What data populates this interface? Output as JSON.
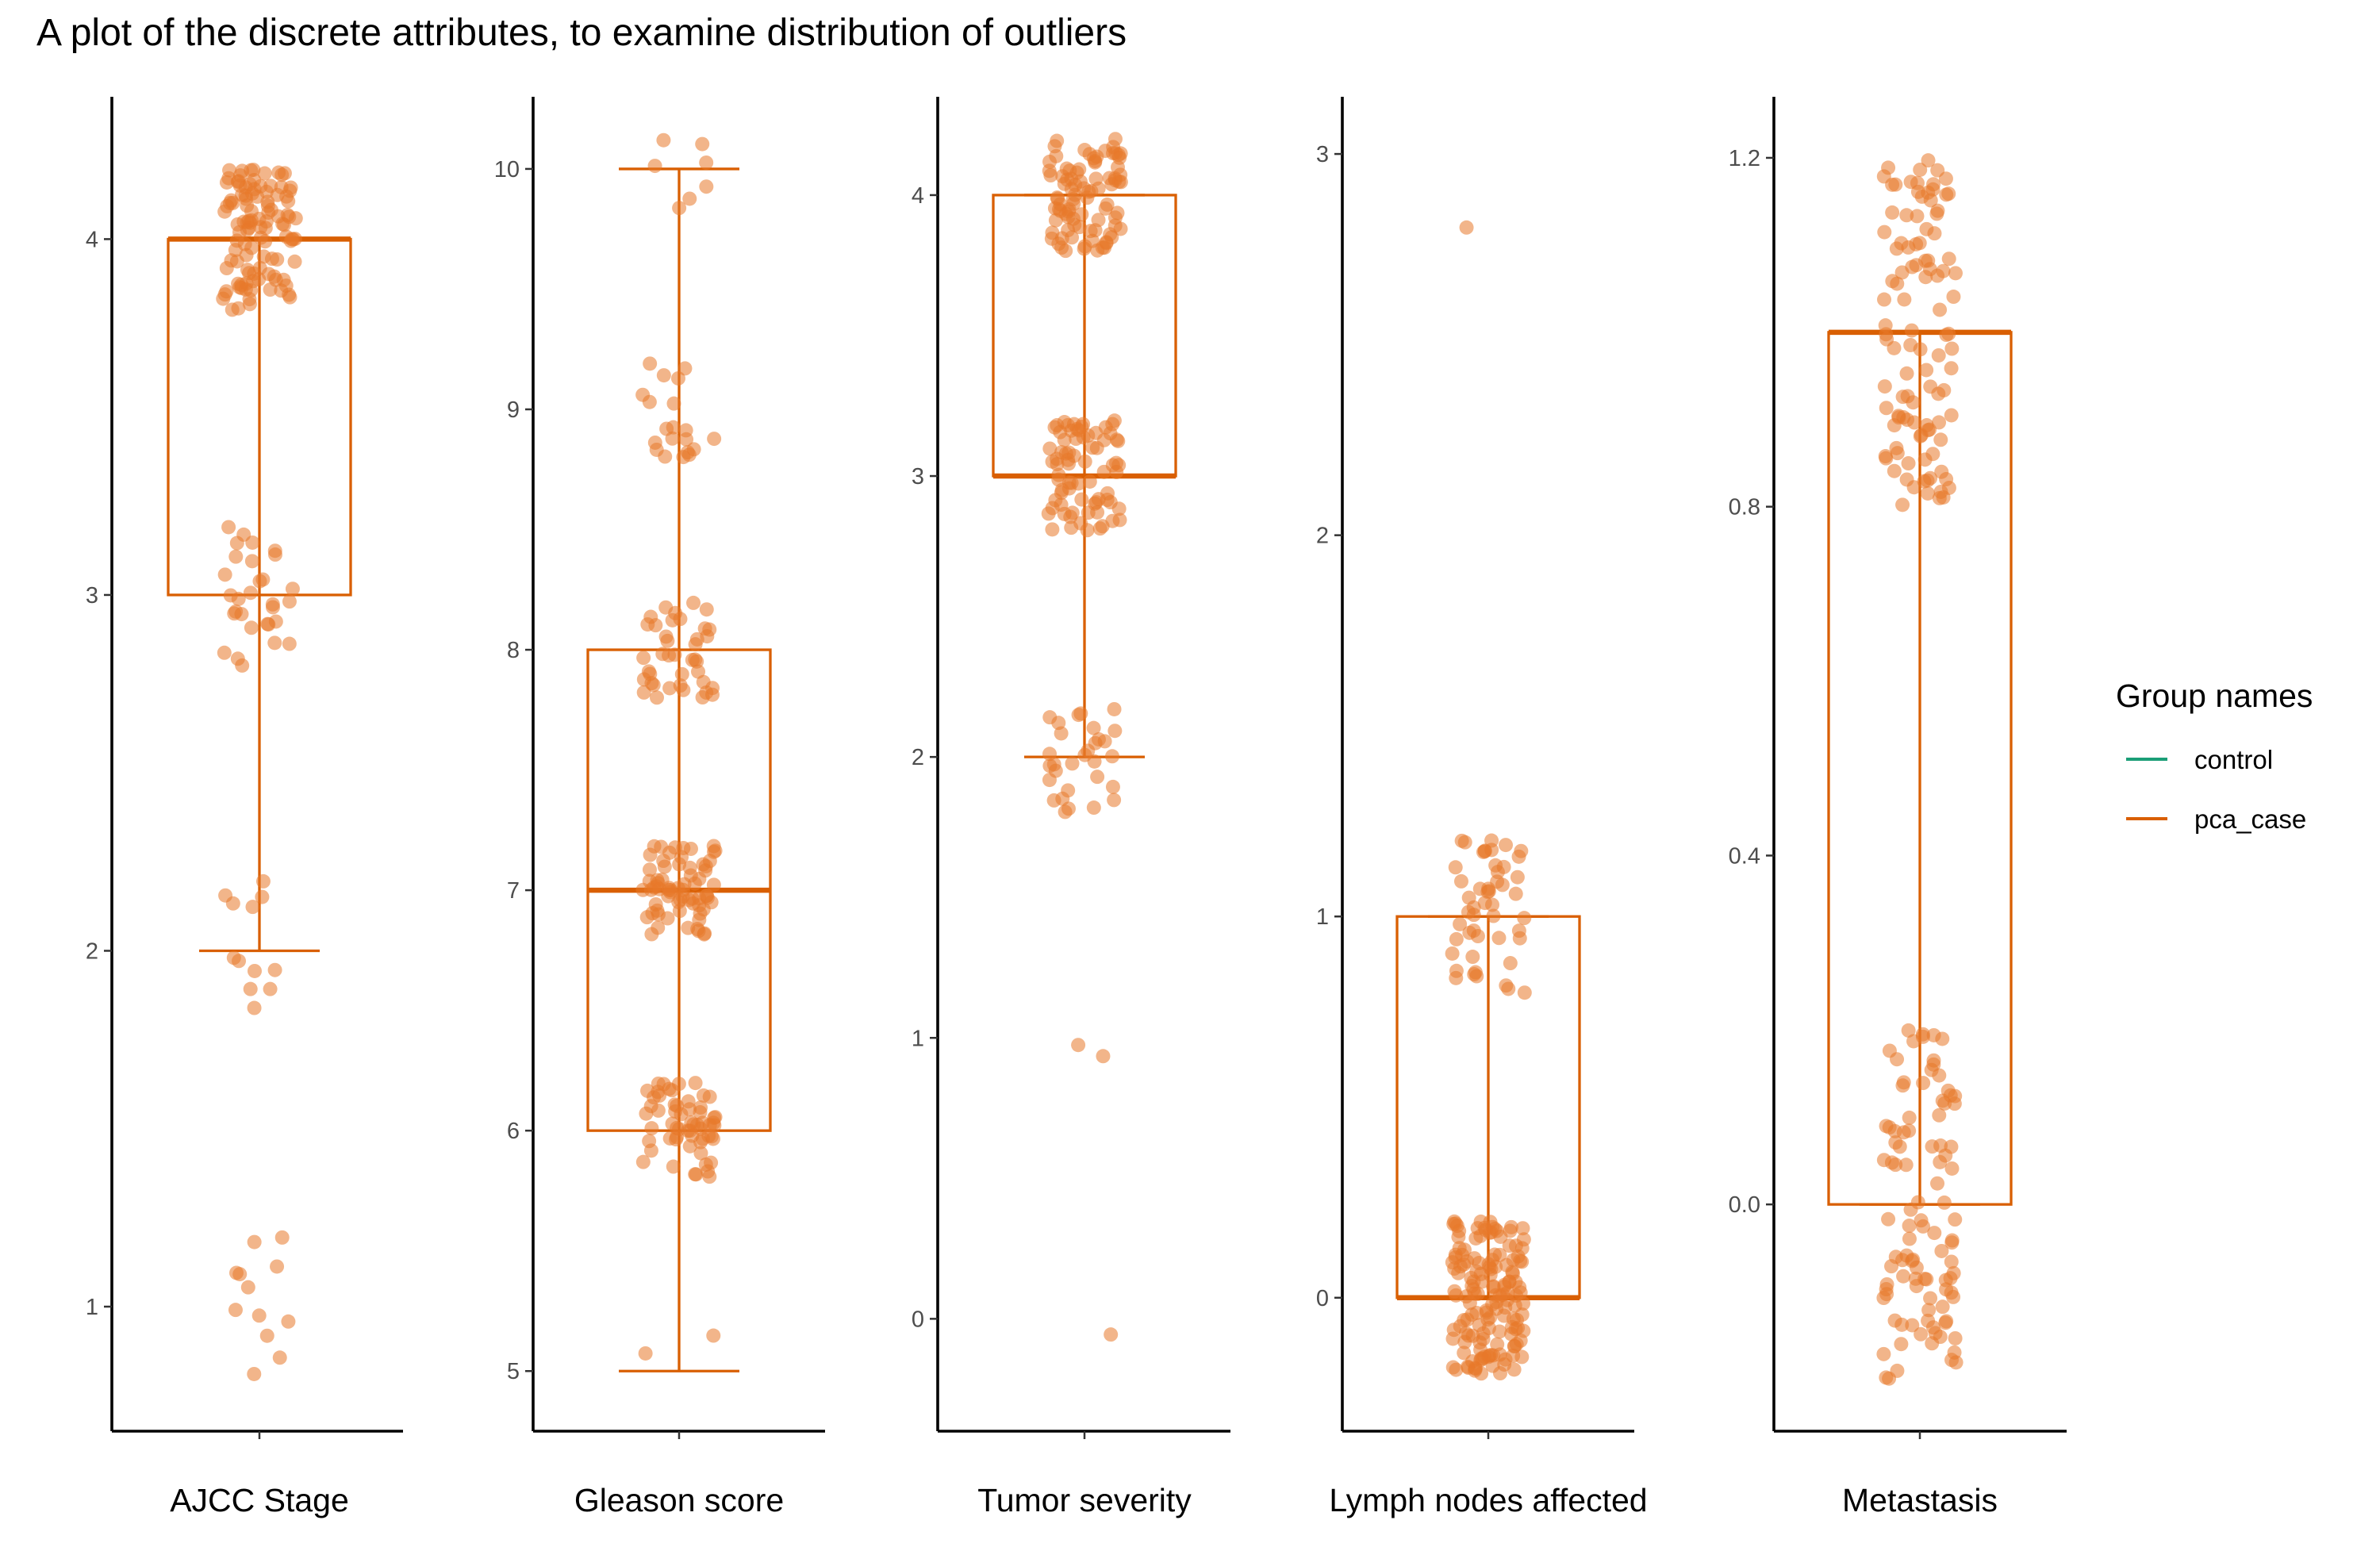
{
  "chart_data": {
    "type": "boxplot",
    "title": "A plot of the discrete attributes, to examine distribution of outliers",
    "colors": {
      "control": "#1b9e77",
      "pca_case": "#d95f02",
      "point_fill": "#e8792a"
    },
    "legend": {
      "title": "Group names",
      "placement": "right",
      "entries": [
        {
          "name": "control",
          "color": "#1b9e77"
        },
        {
          "name": "pca_case",
          "color": "#d95f02"
        }
      ]
    },
    "panels": [
      {
        "xlabel": "AJCC Stage",
        "ylim": [
          0.65,
          4.4
        ],
        "yticks": [
          1,
          2,
          3,
          4
        ],
        "ytick_labels": [
          "1",
          "2",
          "3",
          "4"
        ],
        "box": {
          "q1": 3,
          "median": 4,
          "q3": 4,
          "whisker_low": 2,
          "whisker_high": 4
        },
        "groups": [
          {
            "value": 4,
            "count": 110
          },
          {
            "value": 3,
            "count": 30
          },
          {
            "value": 2,
            "count": 12
          },
          {
            "value": 1,
            "count": 12
          }
        ]
      },
      {
        "xlabel": "Gleason score",
        "ylim": [
          4.75,
          10.3
        ],
        "yticks": [
          5,
          6,
          7,
          8,
          9,
          10
        ],
        "ytick_labels": [
          "5",
          "6",
          "7",
          "8",
          "9",
          "10"
        ],
        "box": {
          "q1": 6,
          "median": 7,
          "q3": 8,
          "whisker_low": 5,
          "whisker_high": 10
        },
        "groups": [
          {
            "value": 10,
            "count": 7
          },
          {
            "value": 9,
            "count": 20
          },
          {
            "value": 8,
            "count": 40
          },
          {
            "value": 7,
            "count": 70
          },
          {
            "value": 6,
            "count": 60
          },
          {
            "value": 5,
            "count": 2
          }
        ]
      },
      {
        "xlabel": "Tumor severity",
        "ylim": [
          -0.4,
          4.35
        ],
        "yticks": [
          0,
          1,
          2,
          3,
          4
        ],
        "ytick_labels": [
          "0",
          "1",
          "2",
          "3",
          "4"
        ],
        "box": {
          "q1": 3,
          "median": 3,
          "q3": 4,
          "whisker_low": 2,
          "whisker_high": 4
        },
        "groups": [
          {
            "value": 4,
            "count": 90
          },
          {
            "value": 3,
            "count": 75
          },
          {
            "value": 2,
            "count": 30
          },
          {
            "value": 1,
            "count": 2
          },
          {
            "value": 0,
            "count": 1
          }
        ]
      },
      {
        "xlabel": "Lymph nodes affected",
        "ylim": [
          -0.35,
          3.15
        ],
        "yticks": [
          0,
          1,
          2,
          3
        ],
        "ytick_labels": [
          "0",
          "1",
          "2",
          "3"
        ],
        "box": {
          "q1": 0,
          "median": 0,
          "q3": 1,
          "whisker_low": 0,
          "whisker_high": 1
        },
        "groups": [
          {
            "value": 3,
            "count": 1
          },
          {
            "value": 1,
            "count": 50
          },
          {
            "value": 0,
            "count": 150
          }
        ]
      },
      {
        "xlabel": "Metastasis",
        "ylim": [
          -0.26,
          1.27
        ],
        "yticks": [
          0.0,
          0.4,
          0.8,
          1.2
        ],
        "ytick_labels": [
          "0.0",
          "0.4",
          "0.8",
          "1.2"
        ],
        "box": {
          "q1": 0,
          "median": 1,
          "q3": 1,
          "whisker_low": 0,
          "whisker_high": 1
        },
        "groups": [
          {
            "value": 1,
            "count": 105
          },
          {
            "value": 0,
            "count": 100
          }
        ]
      }
    ]
  }
}
